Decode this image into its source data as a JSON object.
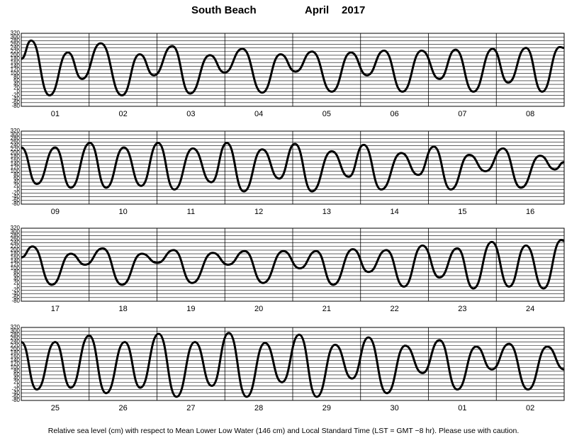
{
  "header": {
    "station": "South Beach",
    "month": "April",
    "year": "2017"
  },
  "footnote": "Relative sea level (cm) with respect to Mean Lower Low Water (146 cm) and Local Standard Time (LST = GMT −8 hr). Please use with caution.",
  "chart_data": [
    {
      "type": "line",
      "categories": [
        "01",
        "02",
        "03",
        "04",
        "05",
        "06",
        "07",
        "08"
      ],
      "xlim": [
        0,
        192
      ],
      "xticks": [
        0,
        24,
        48,
        72,
        96,
        120,
        144,
        168,
        192
      ],
      "ylim": [
        -80,
        320
      ],
      "yticks": [
        -80,
        -60,
        -40,
        -20,
        0,
        20,
        40,
        60,
        80,
        100,
        120,
        140,
        160,
        180,
        200,
        220,
        240,
        260,
        280,
        300,
        320
      ],
      "grid": true,
      "series": [
        {
          "color": "#000000",
          "x": [
            0,
            3.5,
            10,
            16.5,
            21.5,
            28.1,
            35.6,
            41.9,
            46.9,
            53.4,
            59.7,
            66.7,
            71.9,
            78.2,
            85.2,
            91.7,
            97,
            102.8,
            109.8,
            116.6,
            122.3,
            128.3,
            134.8,
            141.6,
            147.9,
            153.6,
            159.9,
            166.7,
            172.2,
            178.5,
            184.2,
            190.5,
            192
          ],
          "values": [
            180,
            280,
            -20,
            215,
            70,
            265,
            -20,
            205,
            90,
            250,
            -10,
            200,
            105,
            235,
            -5,
            205,
            110,
            220,
            0,
            215,
            90,
            225,
            0,
            225,
            70,
            230,
            0,
            235,
            50,
            240,
            0,
            245,
            240
          ]
        }
      ]
    },
    {
      "type": "line",
      "categories": [
        "09",
        "10",
        "11",
        "12",
        "13",
        "14",
        "15",
        "16"
      ],
      "xlim": [
        0,
        192
      ],
      "xticks": [
        0,
        24,
        48,
        72,
        96,
        120,
        144,
        168,
        192
      ],
      "ylim": [
        -80,
        320
      ],
      "yticks": [
        -80,
        -60,
        -40,
        -20,
        0,
        20,
        40,
        60,
        80,
        100,
        120,
        140,
        160,
        180,
        200,
        220,
        240,
        260,
        280,
        300,
        320
      ],
      "grid": true,
      "series": [
        {
          "color": "#000000",
          "x": [
            0,
            5.5,
            12,
            17.5,
            24.3,
            30,
            36.3,
            42.4,
            48.4,
            54.1,
            60.7,
            67.2,
            72.7,
            78.7,
            85.2,
            91.2,
            96.8,
            102.8,
            109.8,
            115.8,
            121.1,
            127.3,
            134.4,
            140.4,
            145.9,
            151.9,
            158.4,
            164.2,
            170.4,
            176.7,
            183.5,
            188.7,
            192
          ],
          "values": [
            230,
            30,
            230,
            10,
            255,
            10,
            230,
            20,
            255,
            0,
            225,
            40,
            255,
            -10,
            220,
            60,
            250,
            -10,
            210,
            70,
            245,
            0,
            200,
            80,
            235,
            0,
            190,
            100,
            225,
            10,
            185,
            110,
            150
          ]
        }
      ]
    },
    {
      "type": "line",
      "categories": [
        "17",
        "18",
        "19",
        "20",
        "21",
        "22",
        "23",
        "24"
      ],
      "xlim": [
        0,
        192
      ],
      "xticks": [
        0,
        24,
        48,
        72,
        96,
        120,
        144,
        168,
        192
      ],
      "ylim": [
        -80,
        320
      ],
      "yticks": [
        -80,
        -60,
        -40,
        -20,
        0,
        20,
        40,
        60,
        80,
        100,
        120,
        140,
        160,
        180,
        200,
        220,
        240,
        260,
        280,
        300,
        320
      ],
      "grid": true,
      "series": [
        {
          "color": "#000000",
          "x": [
            0,
            4,
            10.8,
            17.5,
            22.6,
            28.8,
            35.6,
            42.6,
            48.1,
            53.9,
            60.4,
            67.7,
            73.2,
            79,
            85.5,
            92.7,
            98.5,
            104.3,
            110.3,
            117.3,
            122.8,
            129.1,
            135.3,
            141.9,
            147.9,
            154.2,
            159.9,
            166.4,
            172.5,
            178.5,
            184.7,
            191,
            192
          ],
          "values": [
            160,
            220,
            10,
            180,
            120,
            210,
            10,
            180,
            130,
            200,
            20,
            185,
            120,
            195,
            20,
            195,
            100,
            195,
            10,
            205,
            80,
            200,
            0,
            225,
            50,
            210,
            -10,
            245,
            0,
            225,
            -10,
            255,
            250
          ]
        }
      ]
    },
    {
      "type": "line",
      "categories": [
        "25",
        "26",
        "27",
        "28",
        "29",
        "30",
        "01",
        "02"
      ],
      "xlim": [
        0,
        192
      ],
      "xticks": [
        0,
        24,
        48,
        72,
        96,
        120,
        144,
        168,
        192
      ],
      "ylim": [
        -80,
        320
      ],
      "yticks": [
        -80,
        -60,
        -40,
        -20,
        0,
        20,
        40,
        60,
        80,
        100,
        120,
        140,
        160,
        180,
        200,
        220,
        240,
        260,
        280,
        300,
        320
      ],
      "grid": true,
      "series": [
        {
          "color": "#000000",
          "x": [
            0,
            5.5,
            12,
            17.5,
            24,
            30,
            36.6,
            42.1,
            48.6,
            54.9,
            61.4,
            67.4,
            73.4,
            79.7,
            86.2,
            92.2,
            98.3,
            104.5,
            111,
            117,
            122.8,
            129.3,
            135.8,
            141.9,
            147.9,
            154.2,
            160.9,
            166.4,
            172.5,
            179.2,
            186,
            192
          ],
          "values": [
            240,
            -20,
            240,
            -10,
            275,
            -40,
            240,
            -10,
            285,
            -60,
            240,
            0,
            290,
            -60,
            235,
            20,
            280,
            -60,
            225,
            40,
            265,
            -40,
            220,
            70,
            250,
            -20,
            215,
            90,
            230,
            -20,
            215,
            90
          ]
        }
      ]
    }
  ]
}
